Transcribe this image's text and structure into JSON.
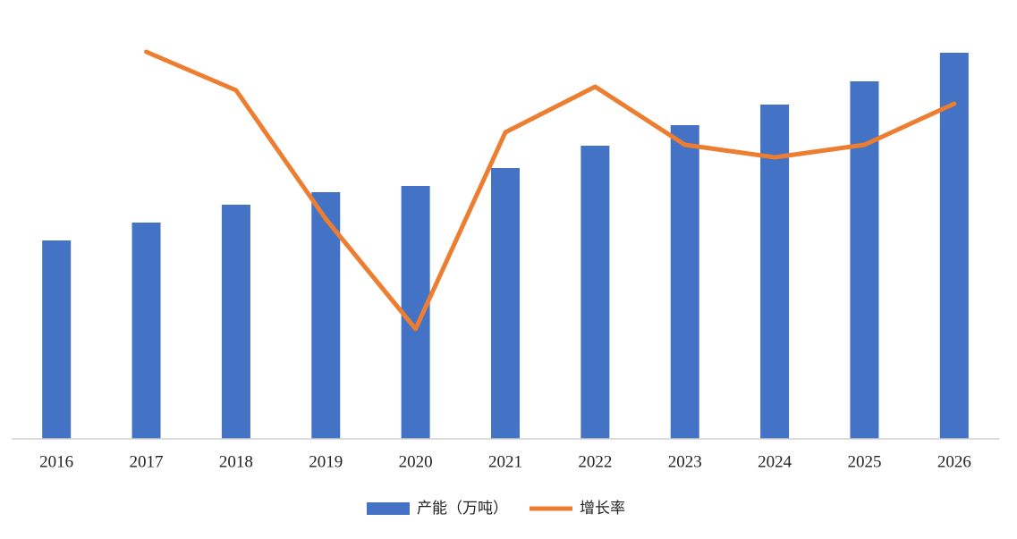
{
  "chart_data": {
    "type": "bar",
    "categories": [
      "2016",
      "2017",
      "2018",
      "2019",
      "2020",
      "2021",
      "2022",
      "2023",
      "2024",
      "2025",
      "2026"
    ],
    "series": [
      {
        "name": "产能（万吨）",
        "color": "#4472c4",
        "type": "bar",
        "values": [
          222,
          242,
          262,
          276,
          283,
          303,
          328,
          351,
          374,
          400,
          432
        ]
      },
      {
        "name": "增长率",
        "color": "#ed7d31",
        "type": "line",
        "axis": "y2",
        "values": [
          null,
          433,
          390,
          246,
          123,
          343,
          394,
          329,
          315,
          329,
          375
        ]
      }
    ],
    "ylim": [
      0,
      450
    ],
    "y2lim": [
      0,
      450
    ],
    "legend": "bottom"
  }
}
